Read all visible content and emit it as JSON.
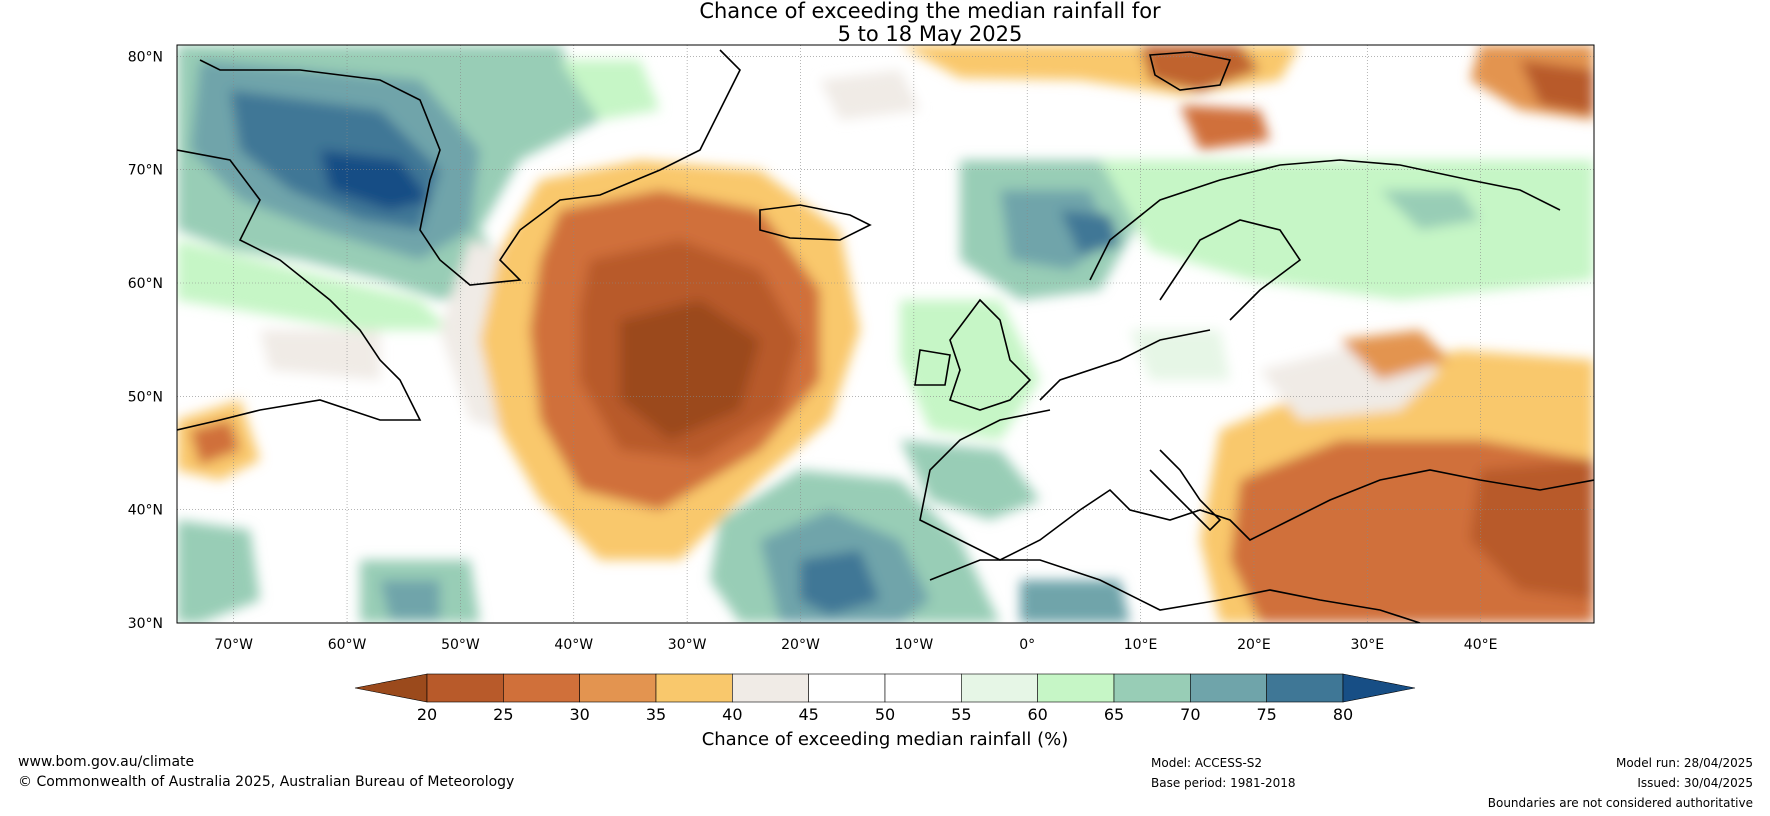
{
  "title": {
    "line1": "Chance of exceeding the median rainfall for",
    "line2": "5 to 18 May 2025"
  },
  "map": {
    "lat_labels": [
      "80°N",
      "70°N",
      "60°N",
      "50°N",
      "40°N",
      "30°N"
    ],
    "lon_labels": [
      "70°W",
      "60°W",
      "50°W",
      "40°W",
      "30°W",
      "20°W",
      "10°W",
      "0°",
      "10°E",
      "20°E",
      "30°E",
      "40°E"
    ],
    "lat_values": [
      80,
      70,
      60,
      50,
      40,
      30
    ],
    "lon_values": [
      -70,
      -60,
      -50,
      -40,
      -30,
      -20,
      -10,
      0,
      10,
      20,
      30,
      40
    ],
    "lon_range": [
      -75,
      50
    ],
    "lat_range": [
      30,
      81
    ]
  },
  "colorbar": {
    "label": "Chance of exceeding median rainfall (%)",
    "ticks": [
      "20",
      "25",
      "30",
      "35",
      "40",
      "45",
      "50",
      "55",
      "60",
      "65",
      "70",
      "75",
      "80"
    ],
    "colors": [
      "#9b4a1c",
      "#b85a2a",
      "#d0703a",
      "#e39450",
      "#f9c86c",
      "#f0ebe6",
      "#ffffff",
      "#ffffff",
      "#e6f6e6",
      "#c6f6c6",
      "#98cdb6",
      "#6fa4aa",
      "#3f7796",
      "#174e85"
    ]
  },
  "footer": {
    "website": "www.bom.gov.au/climate",
    "copyright": "© Commonwealth of Australia 2025, Australian Bureau of Meteorology",
    "model": "Model: ACCESS-S2",
    "base_period": "Base period: 1981-2018",
    "model_run": "Model run: 28/04/2025",
    "issued": "Issued: 30/04/2025",
    "disclaimer": "Boundaries are not considered authoritative"
  }
}
